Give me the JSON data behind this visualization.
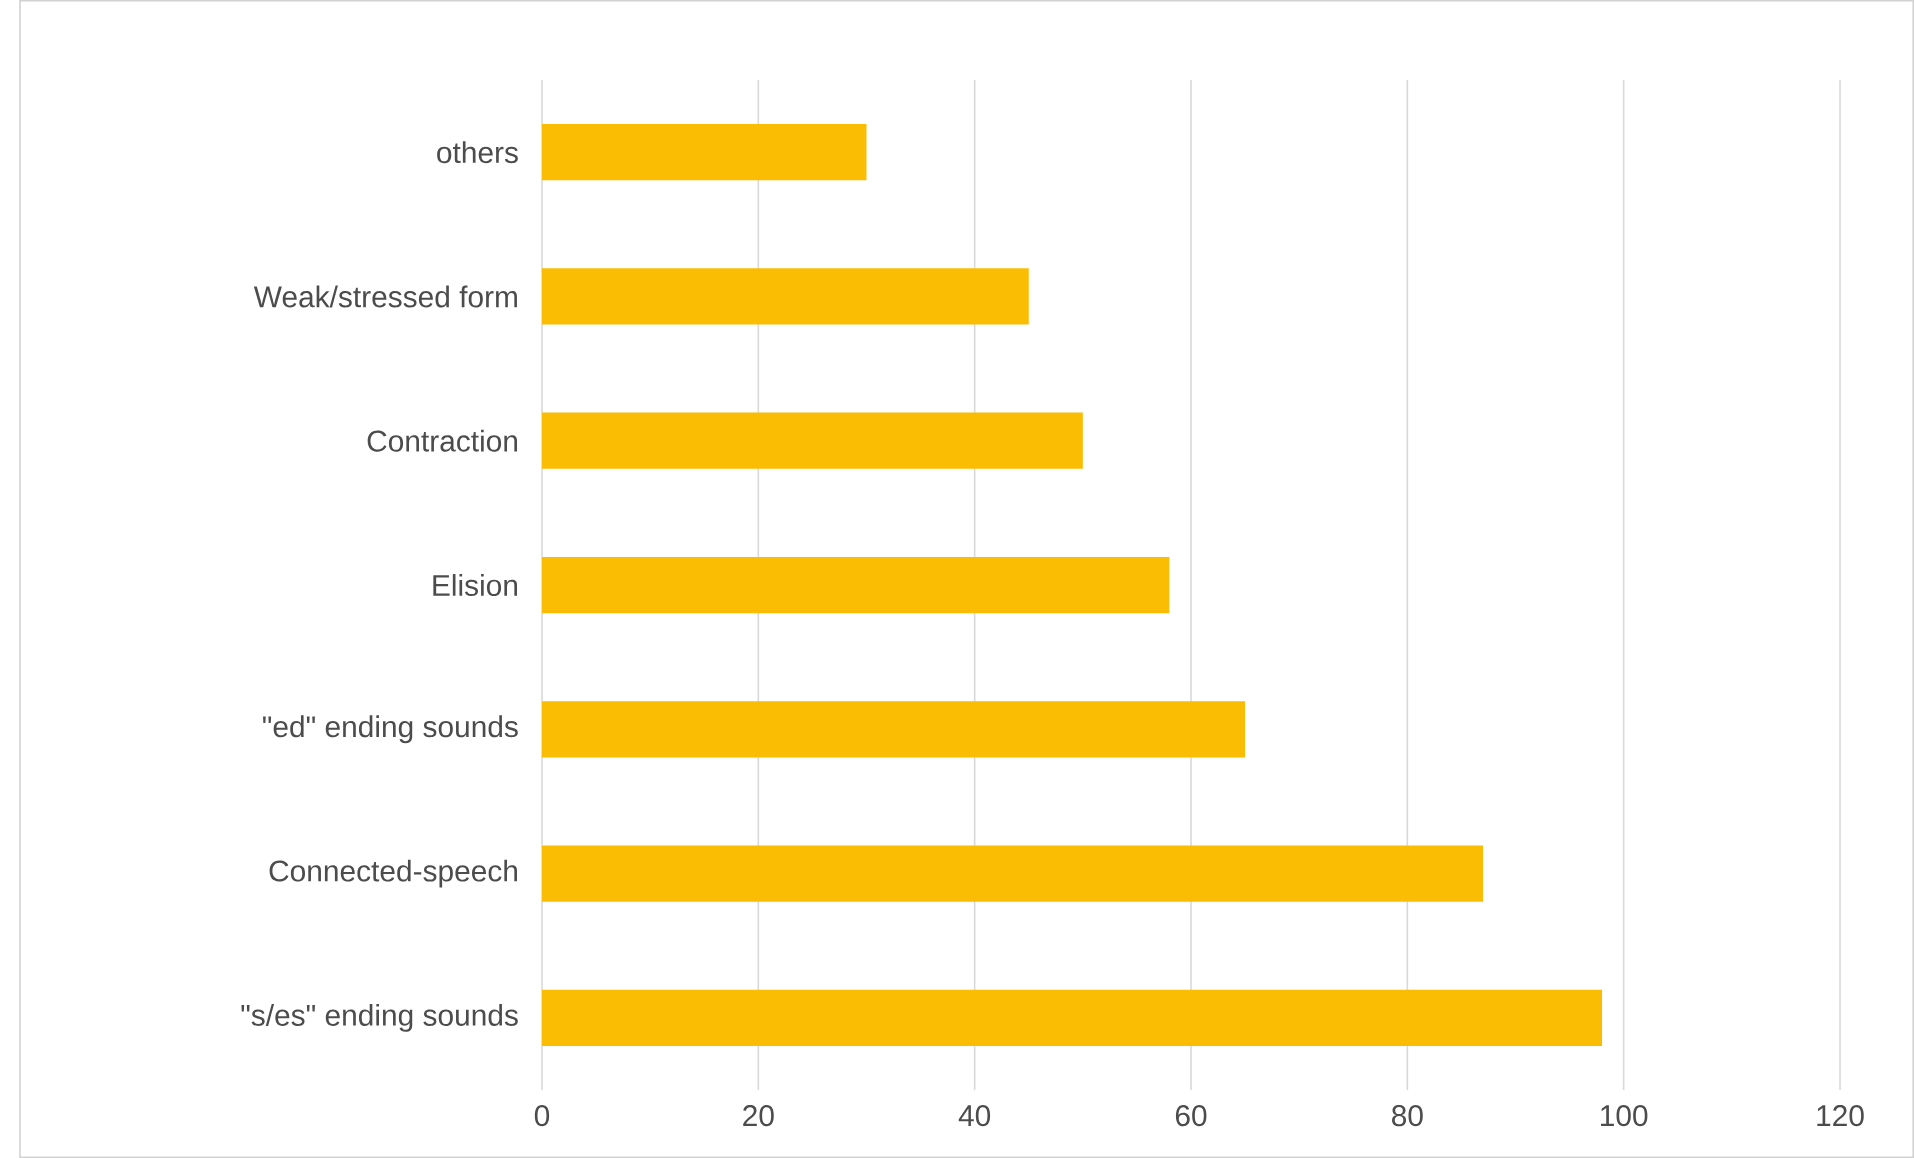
{
  "chart_data": {
    "type": "bar",
    "orientation": "horizontal",
    "categories": [
      "others",
      "Weak/stressed form",
      "Contraction",
      "Elision",
      "\"ed\" ending sounds",
      "Connected-speech",
      "\"s/es\" ending sounds"
    ],
    "values": [
      30,
      45,
      50,
      58,
      65,
      87,
      98
    ],
    "color": "#fbbc04",
    "xlim": [
      0,
      120
    ],
    "xticks": [
      0,
      20,
      40,
      60,
      80,
      100,
      120
    ],
    "grid": "x"
  }
}
